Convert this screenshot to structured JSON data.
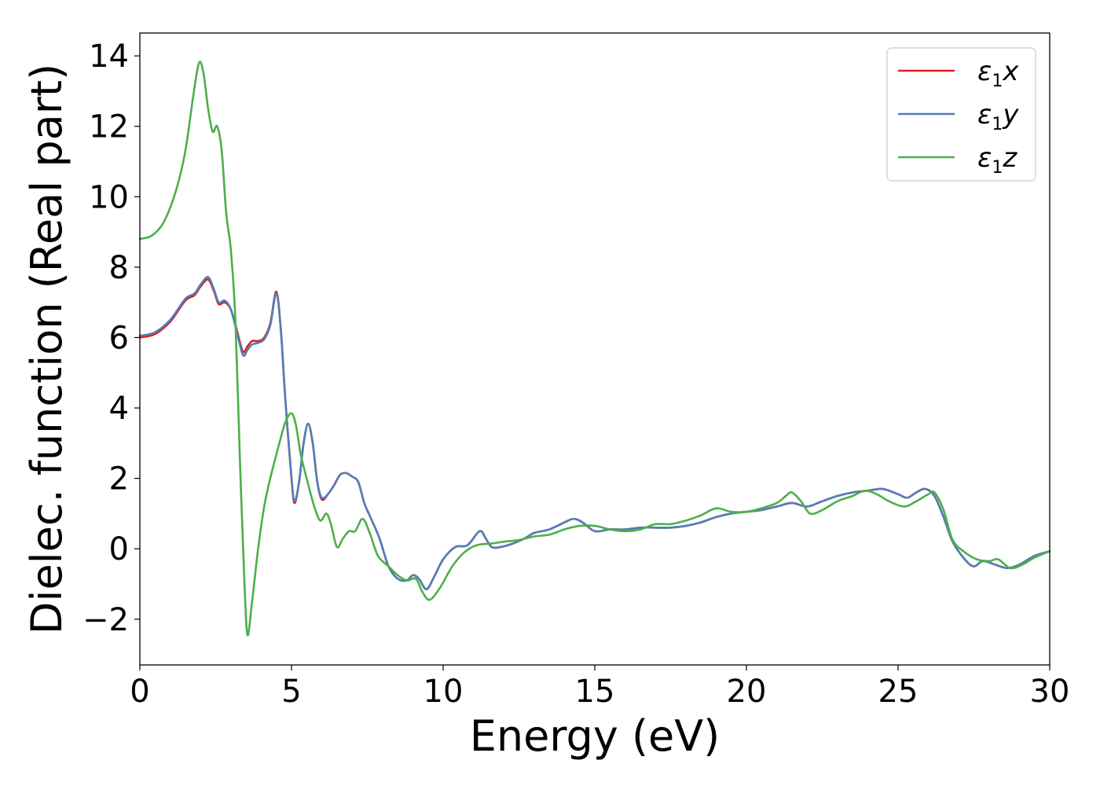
{
  "chart_data": {
    "type": "line",
    "title": "",
    "xlabel": "Energy (eV)",
    "ylabel": "Dielec. function (Real part)",
    "xlim": [
      0,
      30
    ],
    "ylim": [
      -3.3,
      14.65
    ],
    "xticks": [
      0,
      5,
      10,
      15,
      20,
      25,
      30
    ],
    "xtick_labels": [
      "0",
      "5",
      "10",
      "15",
      "20",
      "25",
      "30"
    ],
    "yticks": [
      -2,
      0,
      2,
      4,
      6,
      8,
      10,
      12,
      14
    ],
    "ytick_labels": [
      "−2",
      "0",
      "2",
      "4",
      "6",
      "8",
      "10",
      "12",
      "14"
    ],
    "grid": false,
    "legend_position": "top-right",
    "series": [
      {
        "name": "ε1x",
        "symbol": "ε",
        "subscript": "1",
        "axis": "x",
        "color": "#e41a1c",
        "points": [
          [
            0,
            6.0
          ],
          [
            0.5,
            6.1
          ],
          [
            1.0,
            6.45
          ],
          [
            1.5,
            7.05
          ],
          [
            1.8,
            7.2
          ],
          [
            2.0,
            7.45
          ],
          [
            2.25,
            7.65
          ],
          [
            2.45,
            7.3
          ],
          [
            2.6,
            6.95
          ],
          [
            2.8,
            7.0
          ],
          [
            3.0,
            6.8
          ],
          [
            3.2,
            6.2
          ],
          [
            3.4,
            5.6
          ],
          [
            3.55,
            5.75
          ],
          [
            3.7,
            5.9
          ],
          [
            3.9,
            5.9
          ],
          [
            4.1,
            6.0
          ],
          [
            4.3,
            6.4
          ],
          [
            4.5,
            7.3
          ],
          [
            4.65,
            6.2
          ],
          [
            4.8,
            4.2
          ],
          [
            5.0,
            2.0
          ],
          [
            5.1,
            1.3
          ],
          [
            5.25,
            1.9
          ],
          [
            5.4,
            3.0
          ],
          [
            5.55,
            3.55
          ],
          [
            5.7,
            3.0
          ],
          [
            5.85,
            1.9
          ],
          [
            6.0,
            1.4
          ],
          [
            6.2,
            1.55
          ],
          [
            6.4,
            1.8
          ],
          [
            6.6,
            2.1
          ],
          [
            6.8,
            2.15
          ],
          [
            7.0,
            2.05
          ],
          [
            7.2,
            1.9
          ],
          [
            7.4,
            1.3
          ],
          [
            7.6,
            0.9
          ],
          [
            7.9,
            0.3
          ],
          [
            8.2,
            -0.5
          ],
          [
            8.5,
            -0.85
          ],
          [
            8.8,
            -0.9
          ],
          [
            9.0,
            -0.75
          ],
          [
            9.2,
            -0.85
          ],
          [
            9.45,
            -1.15
          ],
          [
            9.7,
            -0.8
          ],
          [
            10.0,
            -0.3
          ],
          [
            10.4,
            0.05
          ],
          [
            10.8,
            0.1
          ],
          [
            11.2,
            0.5
          ],
          [
            11.4,
            0.3
          ],
          [
            11.6,
            0.05
          ],
          [
            11.9,
            0.05
          ],
          [
            12.3,
            0.15
          ],
          [
            12.7,
            0.3
          ],
          [
            13.0,
            0.45
          ],
          [
            13.5,
            0.55
          ],
          [
            14.0,
            0.75
          ],
          [
            14.3,
            0.85
          ],
          [
            14.6,
            0.75
          ],
          [
            15.0,
            0.5
          ],
          [
            15.5,
            0.55
          ],
          [
            16.0,
            0.55
          ],
          [
            16.5,
            0.6
          ],
          [
            17.0,
            0.6
          ],
          [
            17.5,
            0.6
          ],
          [
            18.0,
            0.65
          ],
          [
            18.5,
            0.75
          ],
          [
            19.0,
            0.9
          ],
          [
            19.5,
            1.0
          ],
          [
            20.0,
            1.05
          ],
          [
            20.5,
            1.1
          ],
          [
            21.0,
            1.2
          ],
          [
            21.5,
            1.3
          ],
          [
            22.0,
            1.2
          ],
          [
            22.5,
            1.35
          ],
          [
            23.0,
            1.5
          ],
          [
            23.5,
            1.6
          ],
          [
            24.0,
            1.65
          ],
          [
            24.5,
            1.7
          ],
          [
            25.0,
            1.55
          ],
          [
            25.3,
            1.45
          ],
          [
            25.6,
            1.6
          ],
          [
            25.9,
            1.7
          ],
          [
            26.2,
            1.5
          ],
          [
            26.5,
            0.9
          ],
          [
            26.8,
            0.2
          ],
          [
            27.2,
            -0.3
          ],
          [
            27.5,
            -0.5
          ],
          [
            27.8,
            -0.35
          ],
          [
            28.2,
            -0.45
          ],
          [
            28.6,
            -0.55
          ],
          [
            29.0,
            -0.45
          ],
          [
            29.5,
            -0.2
          ],
          [
            30.0,
            -0.07
          ]
        ]
      },
      {
        "name": "ε1y",
        "symbol": "ε",
        "subscript": "1",
        "axis": "y",
        "color": "#4f7fb9",
        "points": [
          [
            0,
            6.05
          ],
          [
            0.5,
            6.15
          ],
          [
            1.0,
            6.5
          ],
          [
            1.5,
            7.1
          ],
          [
            1.8,
            7.25
          ],
          [
            2.0,
            7.5
          ],
          [
            2.25,
            7.72
          ],
          [
            2.45,
            7.35
          ],
          [
            2.6,
            7.0
          ],
          [
            2.8,
            7.05
          ],
          [
            3.0,
            6.8
          ],
          [
            3.2,
            6.15
          ],
          [
            3.4,
            5.5
          ],
          [
            3.55,
            5.65
          ],
          [
            3.7,
            5.8
          ],
          [
            3.9,
            5.85
          ],
          [
            4.1,
            5.95
          ],
          [
            4.3,
            6.35
          ],
          [
            4.5,
            7.25
          ],
          [
            4.65,
            6.2
          ],
          [
            4.8,
            4.2
          ],
          [
            5.0,
            2.0
          ],
          [
            5.1,
            1.35
          ],
          [
            5.25,
            1.9
          ],
          [
            5.4,
            3.0
          ],
          [
            5.55,
            3.55
          ],
          [
            5.7,
            3.0
          ],
          [
            5.85,
            1.9
          ],
          [
            6.0,
            1.45
          ],
          [
            6.2,
            1.55
          ],
          [
            6.4,
            1.8
          ],
          [
            6.6,
            2.1
          ],
          [
            6.8,
            2.15
          ],
          [
            7.0,
            2.05
          ],
          [
            7.2,
            1.9
          ],
          [
            7.4,
            1.3
          ],
          [
            7.6,
            0.9
          ],
          [
            7.9,
            0.3
          ],
          [
            8.2,
            -0.5
          ],
          [
            8.5,
            -0.85
          ],
          [
            8.8,
            -0.9
          ],
          [
            9.0,
            -0.75
          ],
          [
            9.2,
            -0.85
          ],
          [
            9.45,
            -1.15
          ],
          [
            9.7,
            -0.8
          ],
          [
            10.0,
            -0.3
          ],
          [
            10.4,
            0.05
          ],
          [
            10.8,
            0.1
          ],
          [
            11.2,
            0.5
          ],
          [
            11.4,
            0.3
          ],
          [
            11.6,
            0.05
          ],
          [
            11.9,
            0.05
          ],
          [
            12.3,
            0.15
          ],
          [
            12.7,
            0.3
          ],
          [
            13.0,
            0.45
          ],
          [
            13.5,
            0.55
          ],
          [
            14.0,
            0.75
          ],
          [
            14.3,
            0.85
          ],
          [
            14.6,
            0.75
          ],
          [
            15.0,
            0.5
          ],
          [
            15.5,
            0.55
          ],
          [
            16.0,
            0.55
          ],
          [
            16.5,
            0.6
          ],
          [
            17.0,
            0.6
          ],
          [
            17.5,
            0.6
          ],
          [
            18.0,
            0.65
          ],
          [
            18.5,
            0.75
          ],
          [
            19.0,
            0.9
          ],
          [
            19.5,
            1.0
          ],
          [
            20.0,
            1.05
          ],
          [
            20.5,
            1.1
          ],
          [
            21.0,
            1.2
          ],
          [
            21.5,
            1.3
          ],
          [
            22.0,
            1.2
          ],
          [
            22.5,
            1.35
          ],
          [
            23.0,
            1.5
          ],
          [
            23.5,
            1.6
          ],
          [
            24.0,
            1.65
          ],
          [
            24.5,
            1.7
          ],
          [
            25.0,
            1.55
          ],
          [
            25.3,
            1.45
          ],
          [
            25.6,
            1.6
          ],
          [
            25.9,
            1.7
          ],
          [
            26.2,
            1.5
          ],
          [
            26.5,
            0.9
          ],
          [
            26.8,
            0.2
          ],
          [
            27.2,
            -0.3
          ],
          [
            27.5,
            -0.5
          ],
          [
            27.8,
            -0.35
          ],
          [
            28.2,
            -0.45
          ],
          [
            28.6,
            -0.55
          ],
          [
            29.0,
            -0.45
          ],
          [
            29.5,
            -0.2
          ],
          [
            30.0,
            -0.07
          ]
        ]
      },
      {
        "name": "ε1z",
        "symbol": "ε",
        "subscript": "1",
        "axis": "z",
        "color": "#4daf4a",
        "points": [
          [
            0,
            8.8
          ],
          [
            0.4,
            8.9
          ],
          [
            0.8,
            9.3
          ],
          [
            1.2,
            10.2
          ],
          [
            1.5,
            11.3
          ],
          [
            1.75,
            12.8
          ],
          [
            1.95,
            13.8
          ],
          [
            2.1,
            13.5
          ],
          [
            2.25,
            12.5
          ],
          [
            2.4,
            11.85
          ],
          [
            2.55,
            12.0
          ],
          [
            2.7,
            11.3
          ],
          [
            2.85,
            9.5
          ],
          [
            3.0,
            8.5
          ],
          [
            3.15,
            6.5
          ],
          [
            3.3,
            2.5
          ],
          [
            3.45,
            -1.0
          ],
          [
            3.55,
            -2.45
          ],
          [
            3.7,
            -1.5
          ],
          [
            3.9,
            0.0
          ],
          [
            4.1,
            1.2
          ],
          [
            4.3,
            2.0
          ],
          [
            4.6,
            3.0
          ],
          [
            4.8,
            3.6
          ],
          [
            5.0,
            3.85
          ],
          [
            5.15,
            3.5
          ],
          [
            5.3,
            2.7
          ],
          [
            5.5,
            2.0
          ],
          [
            5.75,
            1.2
          ],
          [
            5.95,
            0.8
          ],
          [
            6.15,
            1.0
          ],
          [
            6.3,
            0.7
          ],
          [
            6.5,
            0.05
          ],
          [
            6.7,
            0.3
          ],
          [
            6.9,
            0.5
          ],
          [
            7.1,
            0.5
          ],
          [
            7.35,
            0.85
          ],
          [
            7.6,
            0.4
          ],
          [
            7.85,
            -0.2
          ],
          [
            8.2,
            -0.5
          ],
          [
            8.5,
            -0.75
          ],
          [
            8.8,
            -0.9
          ],
          [
            9.1,
            -0.85
          ],
          [
            9.3,
            -1.2
          ],
          [
            9.55,
            -1.45
          ],
          [
            9.9,
            -1.1
          ],
          [
            10.3,
            -0.5
          ],
          [
            10.7,
            -0.1
          ],
          [
            11.1,
            0.1
          ],
          [
            11.6,
            0.15
          ],
          [
            12.0,
            0.2
          ],
          [
            12.5,
            0.25
          ],
          [
            13.0,
            0.35
          ],
          [
            13.5,
            0.4
          ],
          [
            14.0,
            0.55
          ],
          [
            14.5,
            0.65
          ],
          [
            15.0,
            0.65
          ],
          [
            15.5,
            0.55
          ],
          [
            16.0,
            0.5
          ],
          [
            16.5,
            0.55
          ],
          [
            17.0,
            0.7
          ],
          [
            17.5,
            0.7
          ],
          [
            18.0,
            0.8
          ],
          [
            18.5,
            0.95
          ],
          [
            19.0,
            1.15
          ],
          [
            19.5,
            1.05
          ],
          [
            20.0,
            1.05
          ],
          [
            20.5,
            1.15
          ],
          [
            21.0,
            1.3
          ],
          [
            21.3,
            1.5
          ],
          [
            21.5,
            1.6
          ],
          [
            21.8,
            1.35
          ],
          [
            22.1,
            1.0
          ],
          [
            22.5,
            1.1
          ],
          [
            23.0,
            1.35
          ],
          [
            23.5,
            1.5
          ],
          [
            23.9,
            1.65
          ],
          [
            24.3,
            1.55
          ],
          [
            24.7,
            1.35
          ],
          [
            25.2,
            1.2
          ],
          [
            25.6,
            1.35
          ],
          [
            26.0,
            1.55
          ],
          [
            26.2,
            1.6
          ],
          [
            26.5,
            1.1
          ],
          [
            26.8,
            0.25
          ],
          [
            27.2,
            -0.1
          ],
          [
            27.6,
            -0.3
          ],
          [
            28.0,
            -0.35
          ],
          [
            28.3,
            -0.3
          ],
          [
            28.7,
            -0.55
          ],
          [
            29.1,
            -0.45
          ],
          [
            29.5,
            -0.25
          ],
          [
            30.0,
            -0.07
          ]
        ]
      }
    ]
  }
}
